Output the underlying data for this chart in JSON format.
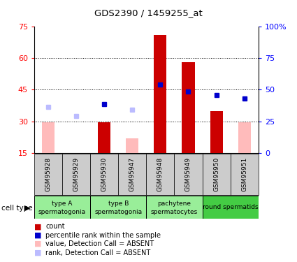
{
  "title": "GDS2390 / 1459255_at",
  "samples": [
    "GSM95928",
    "GSM95929",
    "GSM95930",
    "GSM95947",
    "GSM95948",
    "GSM95949",
    "GSM95950",
    "GSM95951"
  ],
  "count_values": [
    null,
    null,
    29.5,
    null,
    71.0,
    58.0,
    35.0,
    null
  ],
  "count_absent": [
    29.5,
    null,
    null,
    22.0,
    null,
    null,
    null,
    29.5
  ],
  "rank_present": [
    null,
    null,
    38.5,
    null,
    54.0,
    48.5,
    46.0,
    43.0
  ],
  "rank_absent": [
    36.5,
    29.5,
    null,
    34.5,
    null,
    null,
    null,
    null
  ],
  "ylim_left": [
    15,
    75
  ],
  "ylim_right": [
    0,
    100
  ],
  "left_ticks": [
    15,
    30,
    45,
    60,
    75
  ],
  "right_ticks": [
    0,
    25,
    50,
    75,
    100
  ],
  "right_tick_labels": [
    "0",
    "25",
    "50",
    "75",
    "100%"
  ],
  "bar_width": 0.45,
  "count_color": "#cc0000",
  "rank_color": "#0000cc",
  "absent_count_color": "#ffbbbb",
  "absent_rank_color": "#bbbbff",
  "cell_groups": [
    {
      "start": 0,
      "end": 2,
      "label1": "type A",
      "label2": "spermatogonia",
      "color": "#99ee99"
    },
    {
      "start": 2,
      "end": 4,
      "label1": "type B",
      "label2": "spermatogonia",
      "color": "#99ee99"
    },
    {
      "start": 4,
      "end": 6,
      "label1": "pachytene",
      "label2": "spermatocytes",
      "color": "#99ee99"
    },
    {
      "start": 6,
      "end": 8,
      "label1": "round spermatids",
      "label2": "",
      "color": "#44cc44"
    }
  ],
  "sample_bg": "#cccccc",
  "legend_items": [
    {
      "color": "#cc0000",
      "label": "count"
    },
    {
      "color": "#0000cc",
      "label": "percentile rank within the sample"
    },
    {
      "color": "#ffbbbb",
      "label": "value, Detection Call = ABSENT"
    },
    {
      "color": "#bbbbff",
      "label": "rank, Detection Call = ABSENT"
    }
  ]
}
